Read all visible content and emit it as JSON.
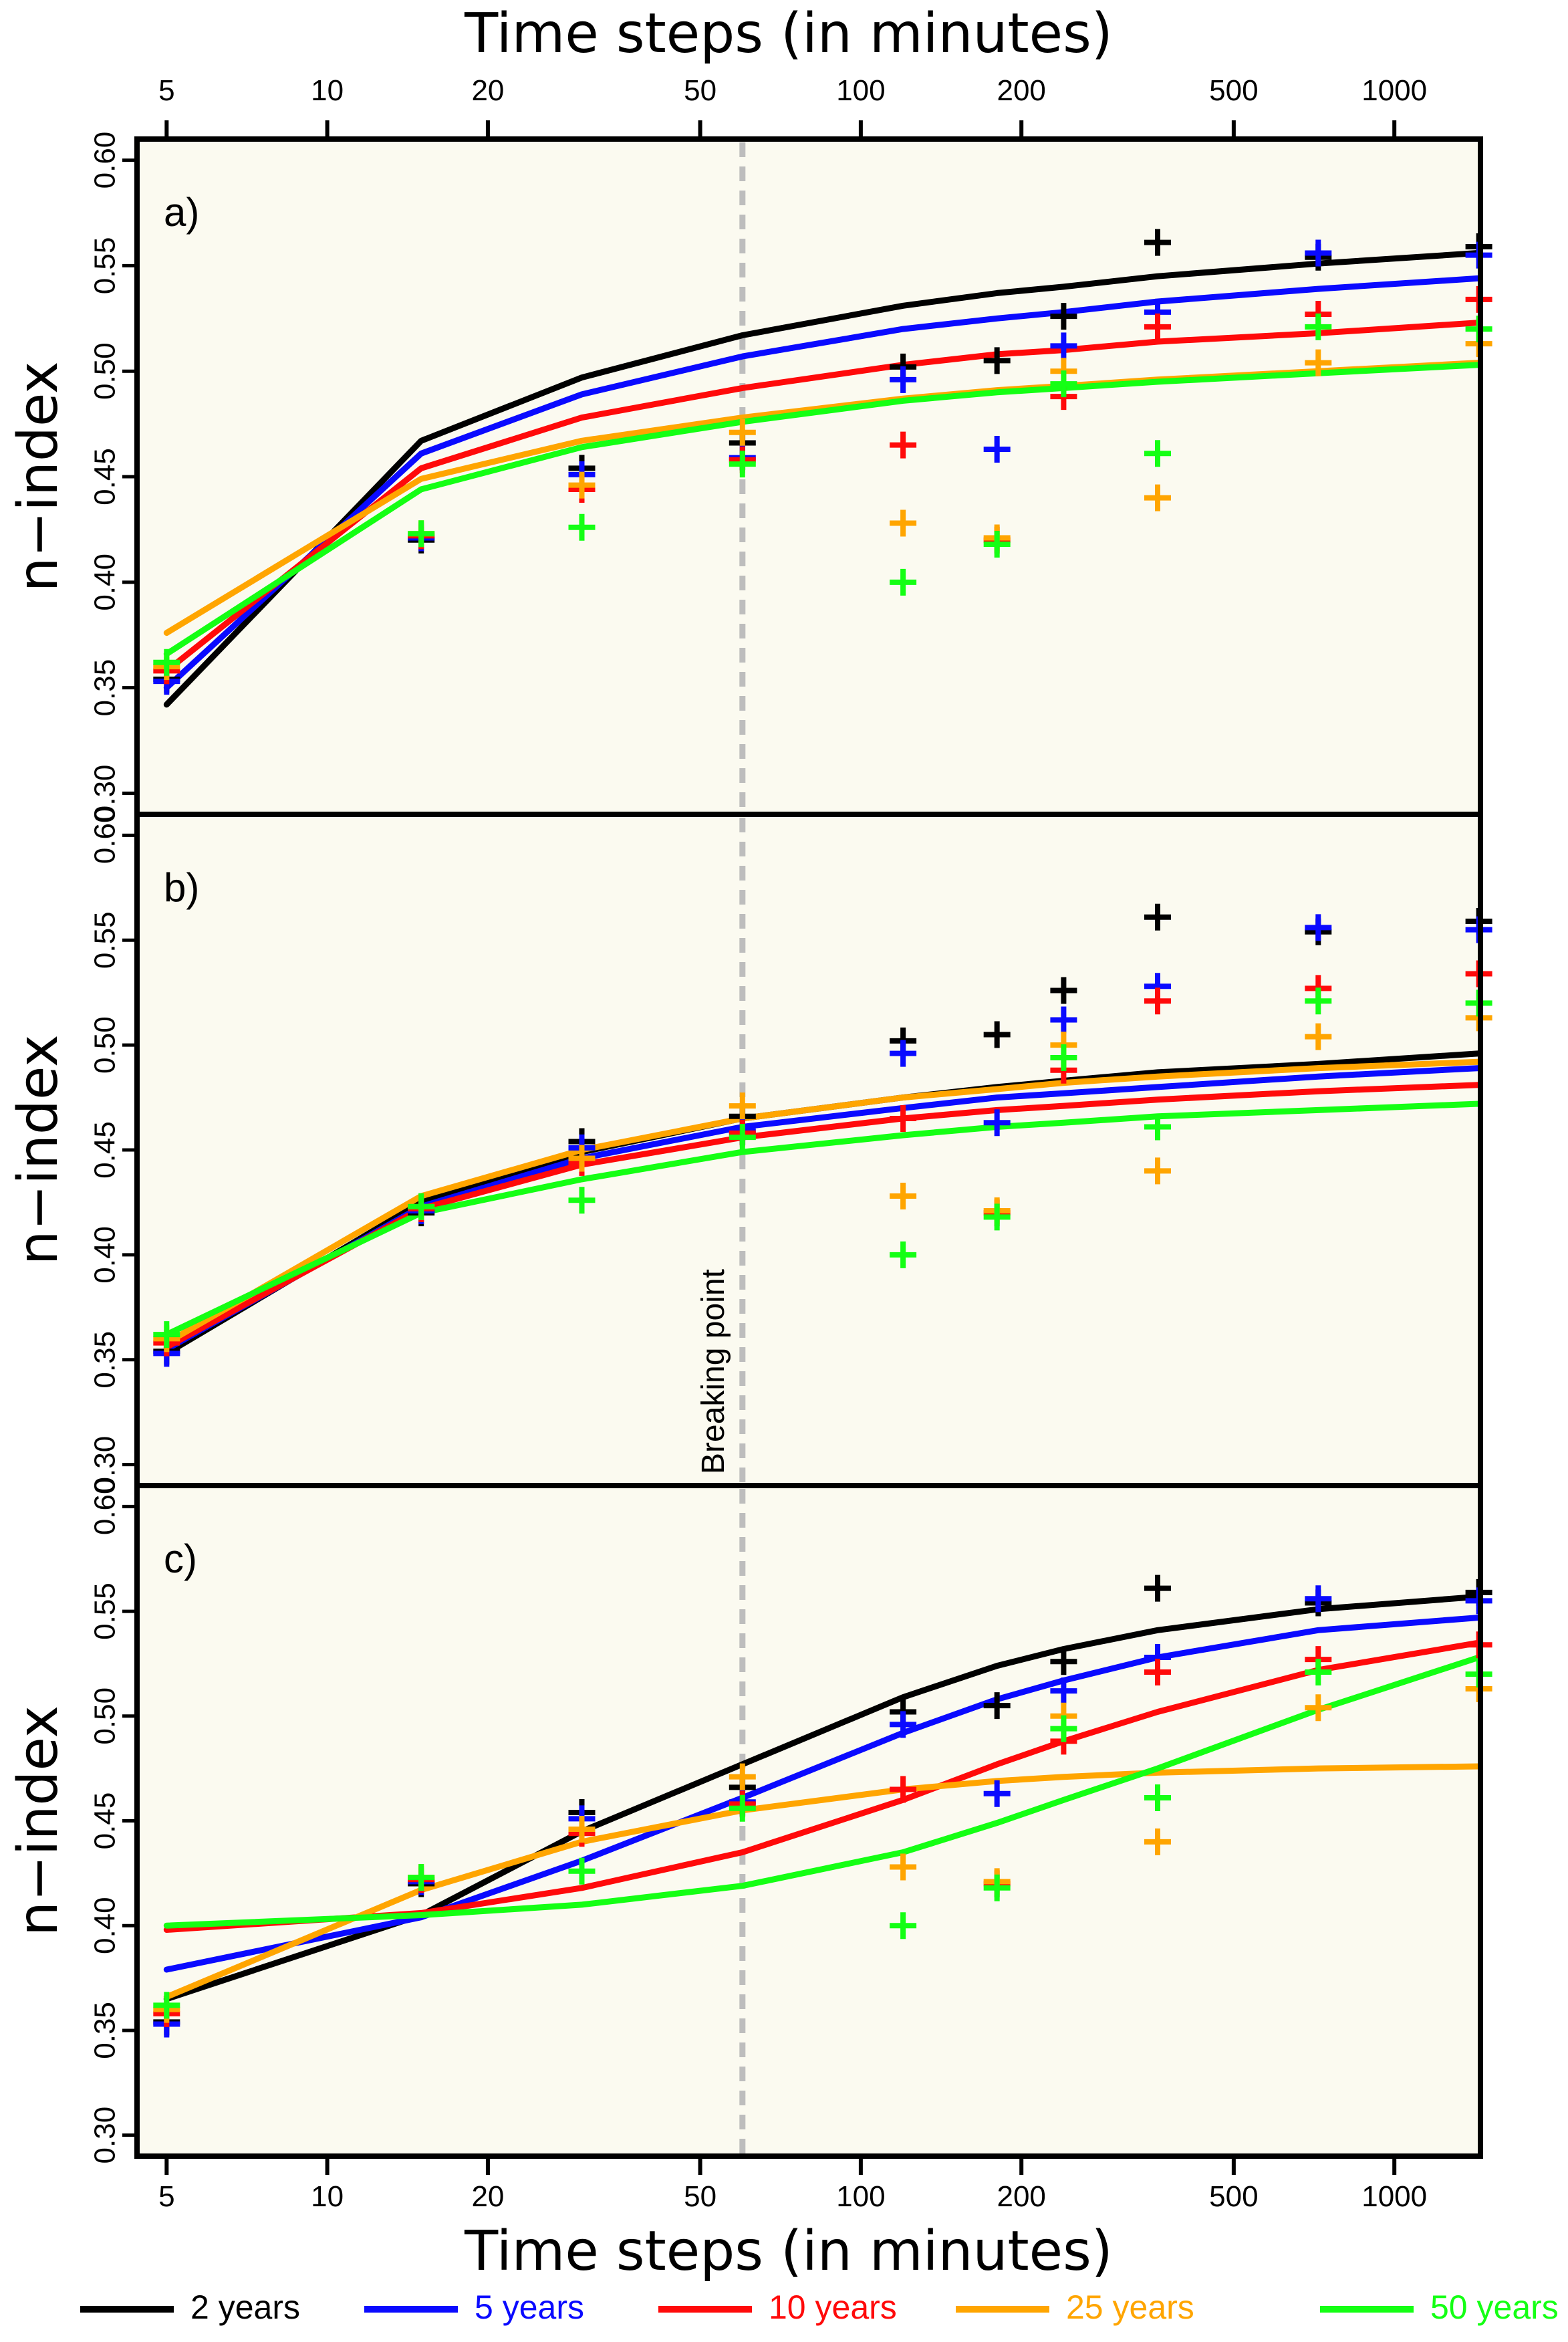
{
  "colors": {
    "panel_bg": "#fbfaf0",
    "breakpoint": "#bdbdbd",
    "series": {
      "2 years": "#000000",
      "5 years": "#0a0aff",
      "10 years": "#ff0a0a",
      "25 years": "#ffa500",
      "50 years": "#14ff14"
    }
  },
  "chart_data": {
    "type": "line",
    "x_scale": "log",
    "x_axis_title": "Time steps (in minutes)",
    "x_tick_labels": [
      "5",
      "10",
      "20",
      "50",
      "100",
      "200",
      "500",
      "1000"
    ],
    "x_ticks": [
      5,
      10,
      20,
      50,
      100,
      200,
      500,
      1000
    ],
    "xlim": [
      4.4,
      1450
    ],
    "ylabel": "n−index",
    "y_tick_labels": [
      "0.30",
      "0.35",
      "0.40",
      "0.45",
      "0.50",
      "0.55",
      "0.60"
    ],
    "y_ticks": [
      0.3,
      0.35,
      0.4,
      0.45,
      0.5,
      0.55,
      0.6
    ],
    "ylim": [
      0.29,
      0.61
    ],
    "breaking_point": {
      "x": 60,
      "label": "Breaking point"
    },
    "x_obs": [
      5,
      15,
      30,
      60,
      120,
      180,
      240,
      360,
      720,
      1440
    ],
    "observed": [
      {
        "name": "2 years",
        "values": [
          0.354,
          0.42,
          0.454,
          0.466,
          0.502,
          0.505,
          0.526,
          0.561,
          0.554,
          0.559
        ]
      },
      {
        "name": "5 years",
        "values": [
          0.353,
          0.421,
          0.451,
          0.459,
          0.496,
          0.463,
          0.512,
          0.528,
          0.556,
          0.555
        ]
      },
      {
        "name": "10 years",
        "values": [
          0.358,
          0.422,
          0.444,
          0.458,
          0.465,
          0.42,
          0.488,
          0.521,
          0.527,
          0.534
        ]
      },
      {
        "name": "25 years",
        "values": [
          0.36,
          0.423,
          0.446,
          0.471,
          0.428,
          0.421,
          0.5,
          0.44,
          0.504,
          0.513
        ]
      },
      {
        "name": "50 years",
        "values": [
          0.362,
          0.423,
          0.426,
          0.456,
          0.4,
          0.418,
          0.494,
          0.461,
          0.521,
          0.52
        ]
      }
    ],
    "panels": [
      {
        "label": "a)",
        "x_fit": [
          5,
          15,
          30,
          60,
          120,
          180,
          240,
          360,
          720,
          1440
        ],
        "series": [
          {
            "name": "2 years",
            "values": [
              0.342,
              0.467,
              0.497,
              0.517,
              0.531,
              0.537,
              0.54,
              0.545,
              0.551,
              0.556
            ]
          },
          {
            "name": "5 years",
            "values": [
              0.35,
              0.461,
              0.489,
              0.507,
              0.52,
              0.525,
              0.528,
              0.533,
              0.539,
              0.544
            ]
          },
          {
            "name": "10 years",
            "values": [
              0.358,
              0.454,
              0.478,
              0.492,
              0.503,
              0.508,
              0.51,
              0.514,
              0.518,
              0.523
            ]
          },
          {
            "name": "25 years",
            "values": [
              0.376,
              0.449,
              0.467,
              0.478,
              0.487,
              0.491,
              0.493,
              0.496,
              0.5,
              0.504
            ]
          },
          {
            "name": "50 years",
            "values": [
              0.366,
              0.444,
              0.464,
              0.476,
              0.486,
              0.49,
              0.492,
              0.495,
              0.499,
              0.503
            ]
          }
        ]
      },
      {
        "label": "b)",
        "x_fit": [
          5,
          15,
          30,
          60,
          120,
          180,
          240,
          360,
          720,
          1440
        ],
        "series": [
          {
            "name": "2 years",
            "values": [
              0.353,
              0.425,
              0.449,
              0.465,
              0.475,
              0.48,
              0.483,
              0.487,
              0.491,
              0.496
            ]
          },
          {
            "name": "5 years",
            "values": [
              0.355,
              0.423,
              0.446,
              0.461,
              0.47,
              0.475,
              0.477,
              0.48,
              0.485,
              0.489
            ]
          },
          {
            "name": "10 years",
            "values": [
              0.356,
              0.422,
              0.443,
              0.456,
              0.465,
              0.469,
              0.471,
              0.474,
              0.478,
              0.481
            ]
          },
          {
            "name": "25 years",
            "values": [
              0.358,
              0.428,
              0.45,
              0.465,
              0.475,
              0.479,
              0.482,
              0.485,
              0.489,
              0.492
            ]
          },
          {
            "name": "50 years",
            "values": [
              0.362,
              0.42,
              0.436,
              0.449,
              0.457,
              0.461,
              0.463,
              0.466,
              0.469,
              0.472
            ]
          }
        ]
      },
      {
        "label": "c)",
        "x_fit": [
          5,
          15,
          30,
          60,
          120,
          180,
          240,
          360,
          720,
          1440
        ],
        "series": [
          {
            "name": "2 years",
            "values": [
              0.365,
              0.405,
              0.445,
              0.477,
              0.509,
              0.524,
              0.532,
              0.541,
              0.551,
              0.557
            ]
          },
          {
            "name": "5 years",
            "values": [
              0.379,
              0.404,
              0.431,
              0.461,
              0.492,
              0.508,
              0.517,
              0.528,
              0.541,
              0.547
            ]
          },
          {
            "name": "10 years",
            "values": [
              0.398,
              0.406,
              0.418,
              0.435,
              0.46,
              0.477,
              0.488,
              0.502,
              0.522,
              0.535
            ]
          },
          {
            "name": "25 years",
            "values": [
              0.366,
              0.417,
              0.44,
              0.455,
              0.465,
              0.469,
              0.471,
              0.473,
              0.475,
              0.476
            ]
          },
          {
            "name": "50 years",
            "values": [
              0.4,
              0.405,
              0.41,
              0.419,
              0.435,
              0.449,
              0.46,
              0.475,
              0.503,
              0.528
            ]
          }
        ]
      }
    ],
    "legend": [
      "2 years",
      "5 years",
      "10 years",
      "25 years",
      "50 years"
    ],
    "legend_position": "bottom"
  }
}
